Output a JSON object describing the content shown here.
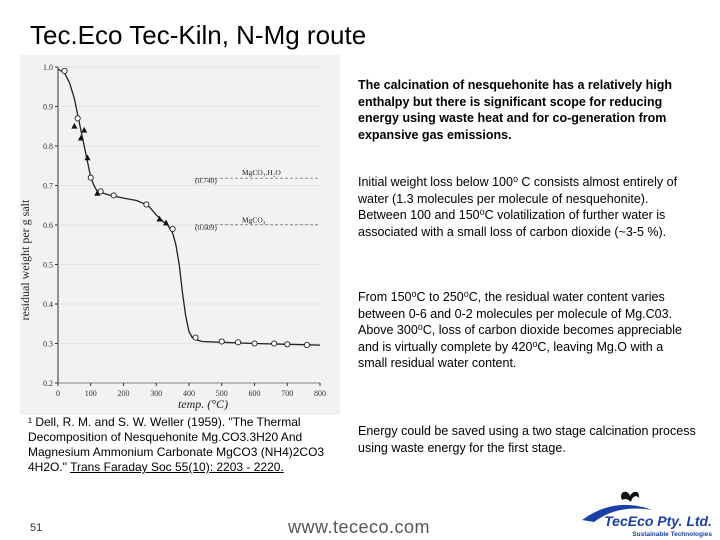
{
  "title": "Tec.Eco Tec-Kiln, N-Mg route",
  "paragraphs": {
    "p1": "The calcination of nesquehonite has a relatively high enthalpy but there is significant scope for reducing energy using waste heat and for co-generation from expansive gas emissions.",
    "p2": "Initial weight loss below 100⁰ C consists almost entirely of water (1.3 molecules per molecule of nesquehonite). Between 100 and 150⁰C volatilization of further water is associated with a small loss of carbon dioxide (~3-5 %).",
    "p3": "From 150⁰C to 250⁰C, the residual water content varies between 0-6 and 0-2 molecules per molecule of Mg.C03. Above 300⁰C, loss of carbon dioxide becomes appreciable and is virtually complete by 420⁰C, leaving Mg.O with a small residual water content.",
    "p4": "Energy could be saved using a two stage calcination process using waste energy for the first stage."
  },
  "reference": {
    "text": "¹ Dell, R. M. and S. W. Weller (1959). \"The Thermal Decomposition of Nesquehonite Mg.CO3.3H20 And Magnesium Ammonium Carbonate MgCO3 (NH4)2CO3 4H2O.\"",
    "citation": "Trans Faraday Soc 55(10): 2203 - 2220."
  },
  "page_number": "51",
  "url": "www.tececo.com",
  "logo": {
    "name": "TecEco Pty. Ltd.",
    "tagline": "Sustainable Technologies",
    "color": "#1a3fa8"
  },
  "chart_data": {
    "type": "line",
    "xlabel": "temp. (°C)",
    "ylabel": "residual weight per g salt",
    "xlim": [
      0,
      800
    ],
    "ylim": [
      0.2,
      1.0
    ],
    "x_ticks": [
      "0",
      "100",
      "200",
      "300",
      "400",
      "500",
      "600",
      "700",
      "800"
    ],
    "y_ticks": [
      "1.0",
      "0.9",
      "0.8",
      "0.7",
      "0.6",
      "0.5",
      "0.4",
      "0.3",
      "0.2"
    ],
    "annotations": [
      {
        "text": "MgCO₃.H₂O",
        "y": 0.726
      },
      {
        "text": "(0.740)",
        "y": 0.716
      },
      {
        "text": "MgCO₃",
        "y": 0.606
      },
      {
        "text": "(0.609)",
        "y": 0.598
      }
    ],
    "curve": {
      "x": [
        0,
        20,
        35,
        50,
        60,
        70,
        80,
        90,
        100,
        110,
        120,
        140,
        160,
        200,
        240,
        260,
        280,
        300,
        320,
        335,
        350,
        360,
        370,
        380,
        390,
        400,
        410,
        420,
        440,
        500,
        600,
        700,
        800
      ],
      "y": [
        0.995,
        0.985,
        0.96,
        0.92,
        0.88,
        0.84,
        0.8,
        0.76,
        0.72,
        0.7,
        0.685,
        0.68,
        0.675,
        0.668,
        0.662,
        0.655,
        0.645,
        0.625,
        0.61,
        0.6,
        0.58,
        0.55,
        0.5,
        0.43,
        0.37,
        0.33,
        0.315,
        0.31,
        0.305,
        0.303,
        0.3,
        0.298,
        0.296
      ]
    },
    "series": [
      {
        "marker": "open-circle",
        "x": [
          20,
          60,
          100,
          130,
          170,
          270,
          350,
          420,
          500,
          550,
          600,
          660,
          700,
          760
        ],
        "y": [
          0.99,
          0.87,
          0.72,
          0.685,
          0.675,
          0.652,
          0.59,
          0.315,
          0.305,
          0.303,
          0.3,
          0.3,
          0.298,
          0.296
        ]
      },
      {
        "marker": "filled-triangle",
        "x": [
          50,
          70,
          80,
          90,
          120,
          310,
          330
        ],
        "y": [
          0.85,
          0.82,
          0.84,
          0.77,
          0.68,
          0.615,
          0.605
        ]
      }
    ]
  }
}
